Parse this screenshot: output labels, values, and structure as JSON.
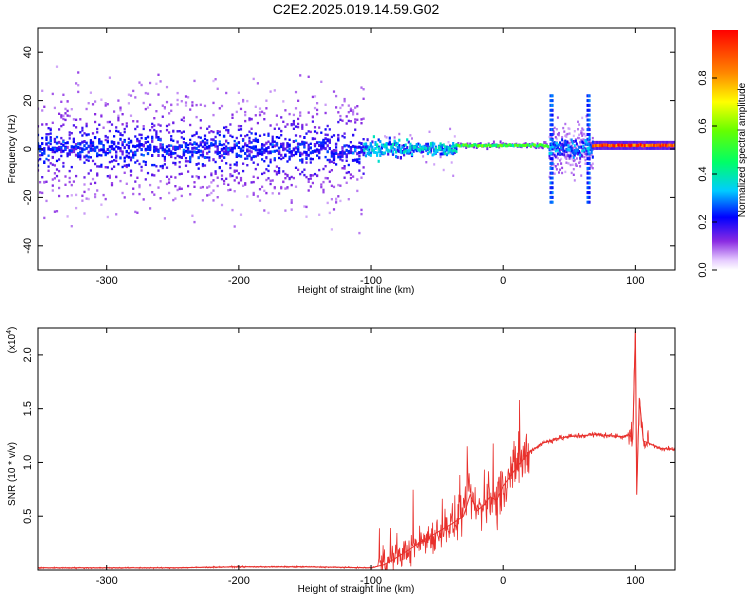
{
  "page": {
    "title": "C2E2.2025.019.14.59.G02"
  },
  "colors": {
    "snr_line": "#e8302c"
  },
  "chart_data": [
    {
      "type": "heatmap",
      "title": "C2E2.2025.019.14.59.G02",
      "xlabel": "Height of straight line (km)",
      "ylabel": "Frequency (Hz)",
      "xlim": [
        -352,
        130
      ],
      "ylim": [
        -50,
        50
      ],
      "xticks": [
        -300,
        -200,
        -100,
        0,
        100
      ],
      "xtick_labels": [
        "-300",
        "-200",
        "-100",
        "0",
        "100"
      ],
      "yticks": [
        -40,
        -20,
        0,
        20,
        40
      ],
      "ytick_labels": [
        "-40",
        "-20",
        "0",
        "20",
        "40"
      ],
      "colorbar": {
        "label": "Normalized spectral amplitude",
        "range": [
          0,
          1
        ],
        "ticks": [
          0.0,
          0.2,
          0.4,
          0.6,
          0.8
        ],
        "tick_labels": [
          "0.0",
          "0.2",
          "0.4",
          "0.6",
          "0.8"
        ],
        "colormap": "rainbow"
      },
      "grid": false
    },
    {
      "type": "line",
      "xlabel": "Height of straight line (km)",
      "ylabel": "SNR (10 * v/v)",
      "yscale_label": "(x10",
      "yscale_exp": "4",
      "xlim": [
        -352,
        130
      ],
      "ylim": [
        0,
        2.25
      ],
      "xticks": [
        -300,
        -200,
        -100,
        0,
        100
      ],
      "xtick_labels": [
        "-300",
        "-200",
        "-100",
        "0",
        "100"
      ],
      "yticks": [
        0.5,
        1.0,
        1.5,
        2.0
      ],
      "ytick_labels": [
        "0.5",
        "1.0",
        "1.5",
        "2.0"
      ],
      "series": [
        {
          "x": [
            -352,
            -300,
            -250,
            -200,
            -150,
            -100,
            -90,
            -80,
            -70,
            -60,
            -50,
            -40,
            -30,
            -25,
            -20,
            -15,
            -10,
            -5,
            0,
            10,
            20,
            30,
            40,
            50,
            60,
            70,
            80,
            90,
            95,
            98,
            100,
            101,
            103,
            106,
            110,
            115,
            120,
            130
          ],
          "y": [
            0.02,
            0.02,
            0.02,
            0.03,
            0.03,
            0.02,
            0.05,
            0.12,
            0.2,
            0.28,
            0.35,
            0.42,
            0.5,
            0.7,
            0.55,
            0.6,
            0.68,
            0.65,
            0.78,
            0.95,
            1.1,
            1.18,
            1.22,
            1.24,
            1.25,
            1.26,
            1.25,
            1.24,
            1.26,
            1.22,
            2.22,
            0.7,
            1.6,
            1.2,
            1.18,
            1.15,
            1.13,
            1.12
          ]
        }
      ],
      "grid": false
    }
  ]
}
